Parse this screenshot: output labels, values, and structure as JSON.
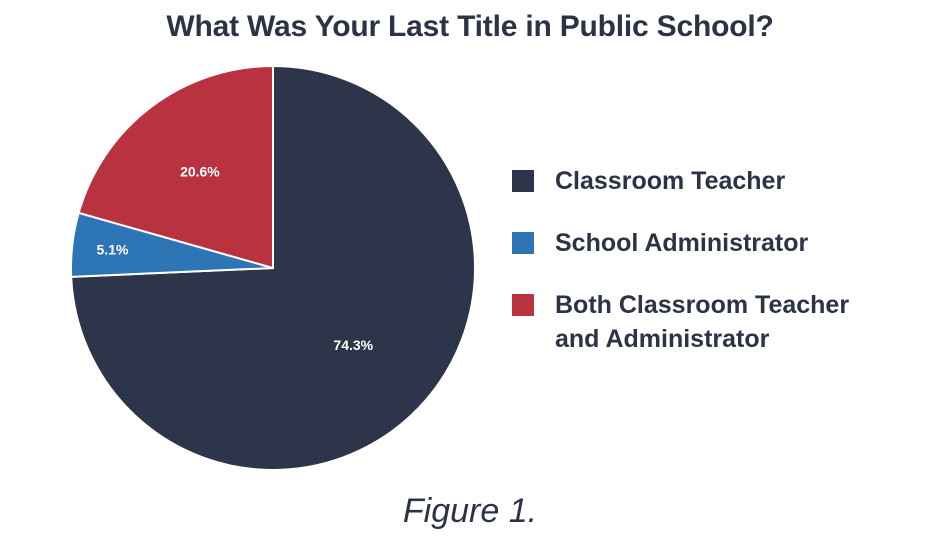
{
  "chart_data": {
    "type": "pie",
    "title": "What Was Your Last Title in Public School?",
    "caption": "Figure 1.",
    "legend_position": "right",
    "slices": [
      {
        "label": "Classroom Teacher",
        "value": 74.3,
        "value_label": "74.3%",
        "color": "#2c3549"
      },
      {
        "label": "School Administrator",
        "value": 5.1,
        "value_label": "5.1%",
        "color": "#2e75b6"
      },
      {
        "label": "Both Classroom Teacher and Administrator",
        "value": 20.6,
        "value_label": "20.6%",
        "color": "#b8323f"
      }
    ]
  }
}
